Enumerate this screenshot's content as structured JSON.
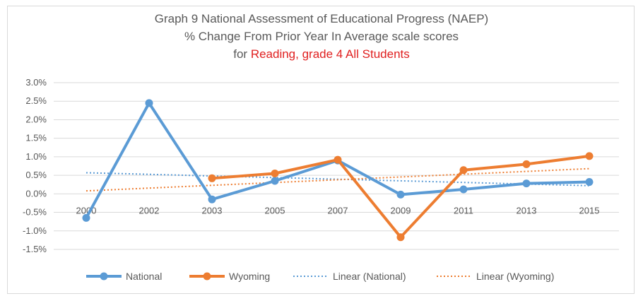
{
  "chart_data": {
    "type": "line",
    "title_line1": "Graph 9 National Assessment of Educational Progress (NAEP)",
    "title_line2": "% Change From Prior Year In Average scale scores",
    "title_line3_prefix": "for",
    "title_line3_highlight": "Reading, grade 4 All Students",
    "categories": [
      "2000",
      "2002",
      "2003",
      "2005",
      "2007",
      "2009",
      "2011",
      "2013",
      "2015"
    ],
    "y_ticks": [
      "3.0%",
      "2.5%",
      "2.0%",
      "1.5%",
      "1.0%",
      "0.5%",
      "0.0%",
      "-0.5%",
      "-1.0%",
      "-1.5%"
    ],
    "ylim": [
      -1.5,
      3.0
    ],
    "grid": true,
    "legend_position": "bottom",
    "series": [
      {
        "name": "National",
        "color": "#5b9bd5",
        "values": [
          -0.65,
          2.45,
          -0.15,
          0.35,
          0.9,
          -0.02,
          0.12,
          0.28,
          0.32
        ]
      },
      {
        "name": "Wyoming",
        "color": "#ed7d31",
        "values": [
          null,
          null,
          0.42,
          0.55,
          0.92,
          -1.17,
          0.64,
          0.8,
          1.02
        ]
      }
    ],
    "trendlines": [
      {
        "name": "Linear (National)",
        "color": "#5b9bd5",
        "start": 0.57,
        "end": 0.22
      },
      {
        "name": "Linear (Wyoming)",
        "color": "#ed7d31",
        "start": 0.08,
        "end": 0.68
      }
    ]
  }
}
